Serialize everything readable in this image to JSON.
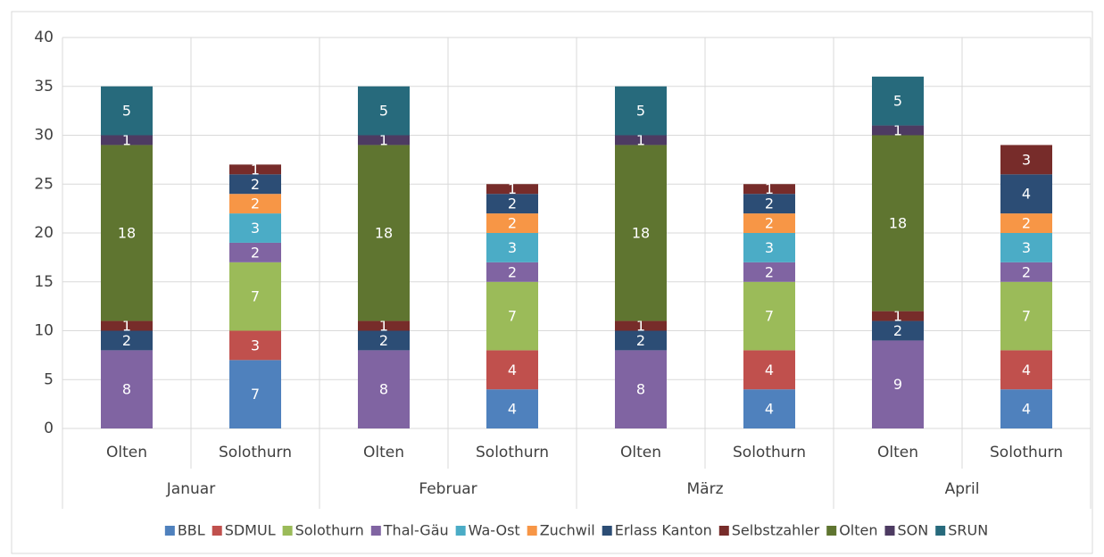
{
  "chart_data": {
    "type": "stacked_bar",
    "categories": [
      "Olten",
      "Solothurn",
      "Olten",
      "Solothurn",
      "Olten",
      "Solothurn",
      "Olten",
      "Solothurn"
    ],
    "groups": [
      "Januar",
      "Februar",
      "März",
      "April"
    ],
    "series": [
      {
        "name": "BBL",
        "color": "#4f81bd",
        "values": [
          null,
          7,
          null,
          4,
          null,
          4,
          null,
          4
        ]
      },
      {
        "name": "SDMUL",
        "color": "#c0504d",
        "values": [
          null,
          3,
          null,
          4,
          null,
          4,
          null,
          4
        ]
      },
      {
        "name": "Solothurn",
        "color": "#9bbb59",
        "values": [
          null,
          7,
          null,
          7,
          null,
          7,
          null,
          7
        ]
      },
      {
        "name": "Thal-Gäu",
        "color": "#8064a2",
        "values": [
          8,
          2,
          8,
          2,
          8,
          2,
          9,
          2
        ]
      },
      {
        "name": "Wa-Ost",
        "color": "#4bacc6",
        "values": [
          null,
          3,
          null,
          3,
          null,
          3,
          null,
          3
        ]
      },
      {
        "name": "Zuchwil",
        "color": "#f79646",
        "values": [
          null,
          2,
          null,
          2,
          null,
          2,
          null,
          2
        ]
      },
      {
        "name": "Erlass Kanton",
        "color": "#2c4d75",
        "values": [
          2,
          2,
          2,
          2,
          2,
          2,
          2,
          4
        ]
      },
      {
        "name": "Selbstzahler",
        "color": "#772c2a",
        "values": [
          1,
          1,
          1,
          1,
          1,
          1,
          1,
          3
        ]
      },
      {
        "name": "Olten",
        "color": "#5f7530",
        "values": [
          18,
          null,
          18,
          null,
          18,
          null,
          18,
          null
        ]
      },
      {
        "name": "SON",
        "color": "#4d3b62",
        "values": [
          1,
          null,
          1,
          null,
          1,
          null,
          1,
          null
        ]
      },
      {
        "name": "SRUN",
        "color": "#276a7c",
        "values": [
          5,
          null,
          5,
          null,
          5,
          null,
          5,
          null
        ]
      }
    ],
    "ylim": [
      0,
      40
    ],
    "yticks": [
      0,
      5,
      10,
      15,
      20,
      25,
      30,
      35,
      40
    ],
    "grid": true,
    "legend": "bottom"
  }
}
